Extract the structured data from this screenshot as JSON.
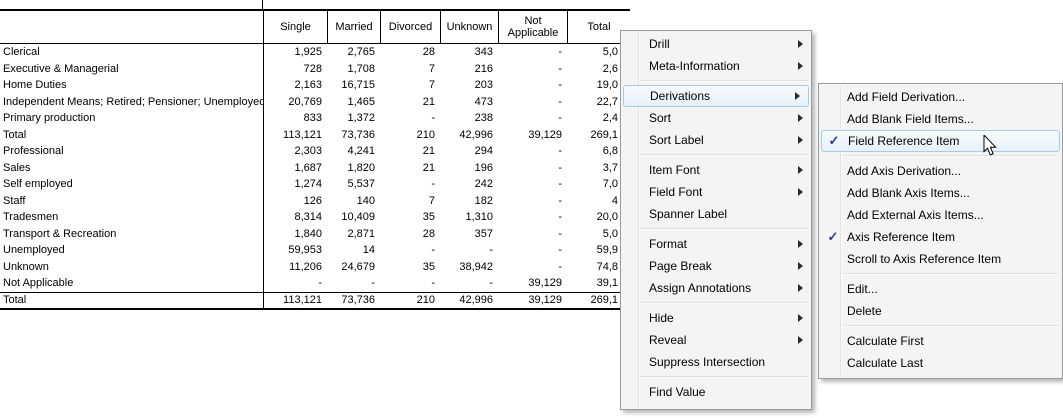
{
  "table": {
    "columns": [
      "Single",
      "Married",
      "Divorced",
      "Unknown",
      "Not Applicable",
      "Total"
    ],
    "rows": [
      {
        "label": "Clerical",
        "values": [
          "1,925",
          "2,765",
          "28",
          "343",
          "-",
          "5,0"
        ]
      },
      {
        "label": "Executive & Managerial",
        "values": [
          "728",
          "1,708",
          "7",
          "216",
          "-",
          "2,6"
        ]
      },
      {
        "label": "Home Duties",
        "values": [
          "2,163",
          "16,715",
          "7",
          "203",
          "-",
          "19,0"
        ]
      },
      {
        "label": "Independent Means; Retired; Pensioner; Unemployed",
        "values": [
          "20,769",
          "1,465",
          "21",
          "473",
          "-",
          "22,7"
        ]
      },
      {
        "label": "Primary production",
        "values": [
          "833",
          "1,372",
          "-",
          "238",
          "-",
          "2,4"
        ]
      },
      {
        "label": "Total",
        "values": [
          "113,121",
          "73,736",
          "210",
          "42,996",
          "39,129",
          "269,1"
        ]
      },
      {
        "label": "Professional",
        "values": [
          "2,303",
          "4,241",
          "21",
          "294",
          "-",
          "6,8"
        ]
      },
      {
        "label": "Sales",
        "values": [
          "1,687",
          "1,820",
          "21",
          "196",
          "-",
          "3,7"
        ]
      },
      {
        "label": "Self employed",
        "values": [
          "1,274",
          "5,537",
          "-",
          "242",
          "-",
          "7,0"
        ]
      },
      {
        "label": "Staff",
        "values": [
          "126",
          "140",
          "7",
          "182",
          "-",
          "4"
        ]
      },
      {
        "label": "Tradesmen",
        "values": [
          "8,314",
          "10,409",
          "35",
          "1,310",
          "-",
          "20,0"
        ]
      },
      {
        "label": "Transport & Recreation",
        "values": [
          "1,840",
          "2,871",
          "28",
          "357",
          "-",
          "5,0"
        ]
      },
      {
        "label": "Unemployed",
        "values": [
          "59,953",
          "14",
          "-",
          "-",
          "-",
          "59,9"
        ]
      },
      {
        "label": "Unknown",
        "values": [
          "11,206",
          "24,679",
          "35",
          "38,942",
          "-",
          "74,8"
        ]
      },
      {
        "label": "Not Applicable",
        "values": [
          "-",
          "-",
          "-",
          "-",
          "39,129",
          "39,1"
        ]
      },
      {
        "label": "Total",
        "values": [
          "113,121",
          "73,736",
          "210",
          "42,996",
          "39,129",
          "269,1"
        ]
      }
    ]
  },
  "context_menu": {
    "items": [
      {
        "label": "Drill",
        "arrow": true
      },
      {
        "label": "Meta-Information",
        "arrow": true
      },
      {
        "type": "separator"
      },
      {
        "label": "Derivations",
        "arrow": true,
        "highlighted": true
      },
      {
        "label": "Sort",
        "arrow": true
      },
      {
        "label": "Sort Label",
        "arrow": true
      },
      {
        "type": "separator"
      },
      {
        "label": "Item Font",
        "arrow": true
      },
      {
        "label": "Field Font",
        "arrow": true
      },
      {
        "label": "Spanner Label"
      },
      {
        "type": "separator"
      },
      {
        "label": "Format",
        "arrow": true
      },
      {
        "label": "Page Break",
        "arrow": true
      },
      {
        "label": "Assign Annotations",
        "arrow": true
      },
      {
        "type": "separator"
      },
      {
        "label": "Hide",
        "arrow": true
      },
      {
        "label": "Reveal",
        "arrow": true
      },
      {
        "label": "Suppress Intersection"
      },
      {
        "type": "separator"
      },
      {
        "label": "Find Value"
      }
    ]
  },
  "submenu": {
    "items": [
      {
        "label": "Add Field Derivation..."
      },
      {
        "label": "Add Blank Field Items..."
      },
      {
        "label": "Field Reference Item",
        "checked": true,
        "highlighted": true
      },
      {
        "type": "separator"
      },
      {
        "label": "Add Axis Derivation..."
      },
      {
        "label": "Add Blank Axis Items..."
      },
      {
        "label": "Add External Axis Items..."
      },
      {
        "label": "Axis Reference Item",
        "checked": true
      },
      {
        "label": "Scroll to Axis Reference Item"
      },
      {
        "type": "separator"
      },
      {
        "label": "Edit..."
      },
      {
        "label": "Delete"
      },
      {
        "type": "separator"
      },
      {
        "label": "Calculate First"
      },
      {
        "label": "Calculate Last"
      }
    ]
  },
  "icons": {
    "checkmark": "✓",
    "submenu_arrow": "right-triangle",
    "cursor": "arrow-pointer"
  },
  "colors": {
    "menu_background": "#f4f4f4",
    "menu_border": "#9b9b9b",
    "highlight_border": "#a9cbe2",
    "highlight_fill": "#e6f1f9",
    "check_color": "#2b3a9a",
    "table_border": "#000000"
  }
}
